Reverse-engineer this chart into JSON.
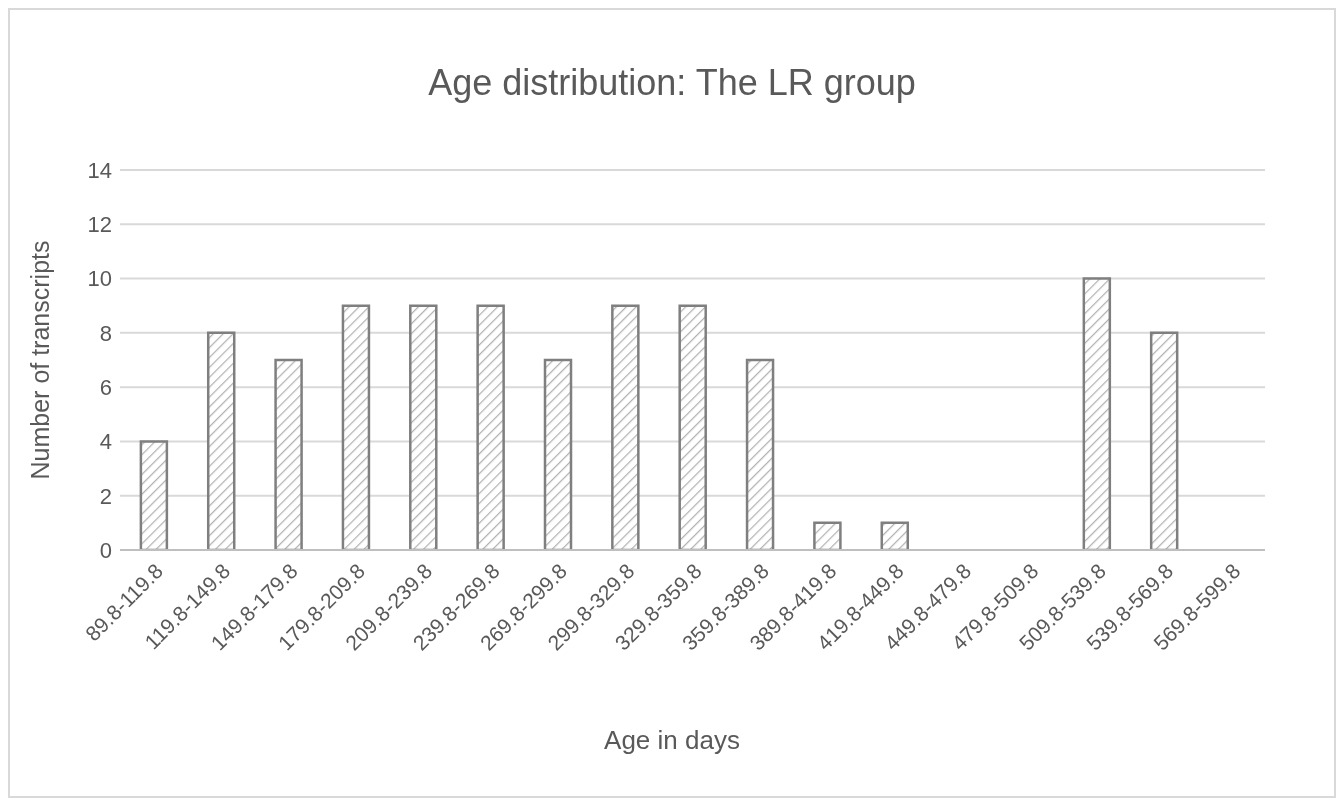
{
  "chart_data": {
    "type": "bar",
    "title": "Age distribution: The LR group",
    "xlabel": "Age in days",
    "ylabel": "Number of transcripts",
    "categories": [
      "89.8-119.8",
      "119.8-149.8",
      "149.8-179.8",
      "179.8-209.8",
      "209.8-239.8",
      "239.8-269.8",
      "269.8-299.8",
      "299.8-329.8",
      "329.8-359.8",
      "359.8-389.8",
      "389.8-419.8",
      "419.8-449.8",
      "449.8-479.8",
      "479.8-509.8",
      "509.8-539.8",
      "539.8-569.8",
      "569.8-599.8"
    ],
    "values": [
      4,
      8,
      7,
      9,
      9,
      9,
      7,
      9,
      9,
      7,
      1,
      1,
      0,
      0,
      10,
      8,
      0
    ],
    "color": "#7f7f7f",
    "ylim": [
      0,
      14
    ],
    "yticks": [
      0,
      2,
      4,
      6,
      8,
      10,
      12,
      14
    ],
    "grid": "y",
    "legend": false
  }
}
